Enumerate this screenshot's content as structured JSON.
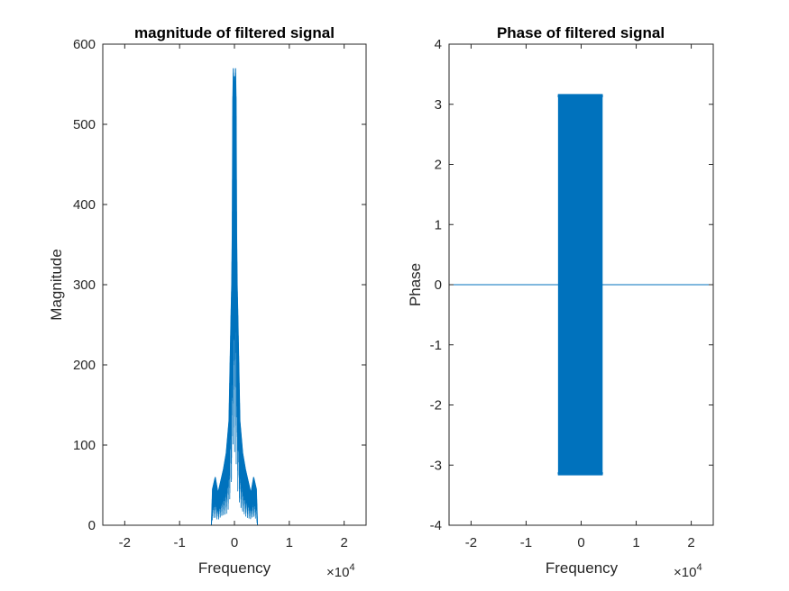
{
  "chart_data": [
    {
      "type": "line",
      "title": "magnitude of filtered signal",
      "xlabel": "Frequency",
      "ylabel": "Magnitude",
      "x_exponent_label": "×10",
      "x_exponent_power": "4",
      "xlim": [
        -2.4,
        2.4
      ],
      "ylim": [
        0,
        600
      ],
      "xticks": [
        -2,
        -1,
        0,
        1,
        2
      ],
      "xtick_labels": [
        "-2",
        "-1",
        "0",
        "1",
        "2"
      ],
      "yticks": [
        0,
        100,
        200,
        300,
        400,
        500,
        600
      ],
      "ytick_labels": [
        "0",
        "100",
        "200",
        "300",
        "400",
        "500",
        "600"
      ],
      "grid": false,
      "line_color": "#0072BD",
      "series": [
        {
          "x": [
            -2.4,
            -0.42,
            -0.4,
            -0.35,
            -0.3,
            -0.25,
            -0.2,
            -0.15,
            -0.1,
            -0.08,
            -0.06,
            -0.05,
            -0.04,
            -0.03,
            -0.02,
            -0.01,
            0.0,
            0.01,
            0.02,
            0.03,
            0.04,
            0.05,
            0.06,
            0.08,
            0.1,
            0.15,
            0.2,
            0.25,
            0.3,
            0.35,
            0.4,
            0.42,
            2.4
          ],
          "y": [
            0,
            0,
            45,
            60,
            40,
            55,
            70,
            90,
            130,
            200,
            270,
            300,
            365,
            530,
            570,
            500,
            560,
            500,
            570,
            530,
            365,
            300,
            270,
            200,
            130,
            90,
            70,
            55,
            40,
            60,
            45,
            0,
            0
          ]
        }
      ]
    },
    {
      "type": "line",
      "title": "Phase of filtered signal",
      "xlabel": "Frequency",
      "ylabel": "Phase",
      "x_exponent_label": "×10",
      "x_exponent_power": "4",
      "xlim": [
        -2.4,
        2.4
      ],
      "ylim": [
        -4,
        4
      ],
      "xticks": [
        -2,
        -1,
        0,
        1,
        2
      ],
      "xtick_labels": [
        "-2",
        "-1",
        "0",
        "1",
        "2"
      ],
      "yticks": [
        -4,
        -3,
        -2,
        -1,
        0,
        1,
        2,
        3,
        4
      ],
      "ytick_labels": [
        "-4",
        "-3",
        "-2",
        "-1",
        "0",
        "1",
        "2",
        "3",
        "4"
      ],
      "grid": false,
      "line_color": "#0072BD",
      "flat_value": 0,
      "oscillation_band": {
        "x_start": -0.42,
        "x_end": 0.39,
        "y_min": -3.14,
        "y_max": 3.14
      }
    }
  ]
}
